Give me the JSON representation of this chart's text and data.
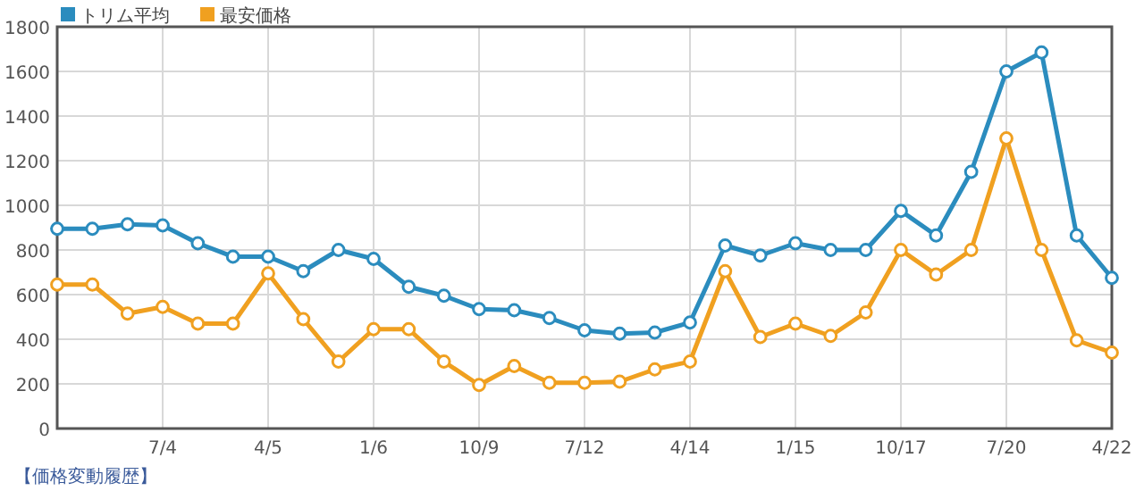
{
  "chart_data": {
    "type": "line",
    "categories": [
      null,
      null,
      null,
      "7/4",
      null,
      null,
      "4/5",
      null,
      null,
      "1/6",
      null,
      null,
      "10/9",
      null,
      null,
      "7/12",
      null,
      null,
      "4/14",
      null,
      null,
      "1/15",
      null,
      null,
      "10/17",
      null,
      null,
      "7/20",
      null,
      null,
      "4/22"
    ],
    "series": [
      {
        "name": "トリム平均",
        "color": "#2b8cbe",
        "values": [
          895,
          895,
          915,
          910,
          830,
          770,
          770,
          705,
          800,
          760,
          635,
          595,
          535,
          530,
          495,
          440,
          425,
          430,
          475,
          820,
          775,
          830,
          800,
          800,
          975,
          865,
          1150,
          1600,
          1685,
          865,
          675
        ]
      },
      {
        "name": "最安価格",
        "color": "#f0a020",
        "values": [
          645,
          645,
          515,
          545,
          470,
          470,
          695,
          490,
          300,
          445,
          445,
          300,
          195,
          280,
          205,
          205,
          210,
          265,
          300,
          705,
          410,
          470,
          415,
          520,
          800,
          690,
          800,
          1300,
          800,
          395,
          340
        ]
      }
    ],
    "ylim": [
      0,
      1800
    ],
    "yticks": [
      0,
      200,
      400,
      600,
      800,
      1000,
      1200,
      1400,
      1600,
      1800
    ],
    "grid": true,
    "legend": "top left",
    "marker": "circle",
    "line_style": "solid",
    "annotations": [
      "【価格変動履歴】"
    ]
  }
}
